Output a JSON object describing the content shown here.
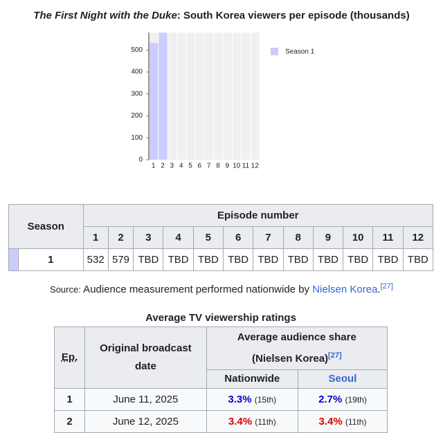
{
  "chart_data": {
    "type": "bar",
    "title": {
      "work": "The First Night with the Duke",
      "text": ": South Korea viewers per episode (thousands)"
    },
    "categories": [
      "1",
      "2",
      "3",
      "4",
      "5",
      "6",
      "7",
      "8",
      "9",
      "10",
      "11",
      "12"
    ],
    "series": [
      {
        "name": "Season 1",
        "color": "#ccccff",
        "values": [
          532,
          579,
          null,
          null,
          null,
          null,
          null,
          null,
          null,
          null,
          null,
          null
        ]
      }
    ],
    "ylim": [
      0,
      580
    ],
    "yticks": [
      0,
      100,
      200,
      300,
      400,
      500
    ],
    "legend": "right"
  },
  "viewers_table": {
    "header": {
      "season": "Season",
      "episode_number": "Episode number"
    },
    "rows": [
      {
        "season": "1",
        "cells": [
          "532",
          "579",
          "TBD",
          "TBD",
          "TBD",
          "TBD",
          "TBD",
          "TBD",
          "TBD",
          "TBD",
          "TBD",
          "TBD"
        ]
      }
    ]
  },
  "source": {
    "label": "Source:",
    "text": " Audience measurement performed nationwide by ",
    "link": "Nielsen Korea",
    "end": ".",
    "ref": "[27]"
  },
  "ratings_table": {
    "caption": "Average TV viewership ratings",
    "header": {
      "ep": "Ep.",
      "date": "Original broadcast date",
      "share": "Average audience share (Nielsen Korea)",
      "share_ref": "[27]",
      "nationwide": "Nationwide",
      "seoul": "Seoul"
    },
    "rows": [
      {
        "ep": "1",
        "date": "June 11, 2025",
        "nationwide": {
          "text": "3.3%",
          "rank": "(15th)",
          "color": "#0000cc"
        },
        "seoul": {
          "text": "2.7%",
          "rank": "(19th)",
          "color": "#0000cc"
        }
      },
      {
        "ep": "2",
        "date": "June 12, 2025",
        "nationwide": {
          "text": "3.4%",
          "rank": "(11th)",
          "color": "#dd0000"
        },
        "seoul": {
          "text": "3.4%",
          "rank": "(11th)",
          "color": "#dd0000"
        }
      }
    ]
  }
}
